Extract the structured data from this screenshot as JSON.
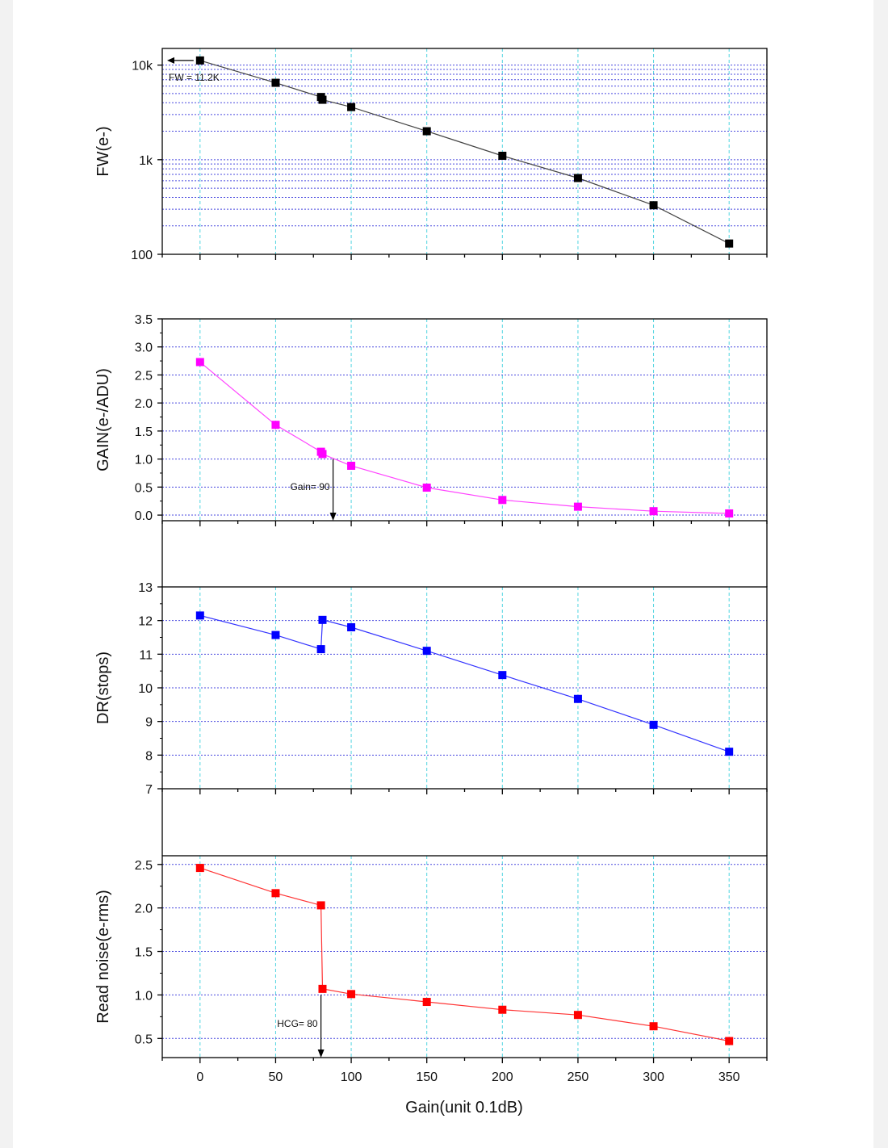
{
  "x_axis": {
    "label": "Gain(unit 0.1dB)",
    "ticks": [
      0,
      50,
      100,
      150,
      200,
      250,
      300,
      350
    ],
    "range": [
      -25,
      375
    ]
  },
  "chart_data": [
    {
      "type": "line",
      "ylabel": "FW(e-)",
      "y_scale": "log",
      "ylim": [
        100,
        15000
      ],
      "y_ticks": [
        {
          "v": 100,
          "label": "100"
        },
        {
          "v": 1000,
          "label": "1k"
        },
        {
          "v": 10000,
          "label": "10k"
        }
      ],
      "grid": true,
      "x_grid_color": "#4fd4e0",
      "y_grid_color": "#4a4adf",
      "series": [
        {
          "color": "#000000",
          "line_color": "#444444",
          "x": [
            0,
            50,
            80,
            81,
            100,
            150,
            200,
            250,
            300,
            350
          ],
          "y": [
            11200,
            6500,
            4600,
            4300,
            3600,
            2000,
            1100,
            640,
            330,
            130
          ]
        }
      ],
      "annotation": {
        "text": "FW = 11.2K",
        "x": 0,
        "y": 11200,
        "arrow": "left"
      }
    },
    {
      "type": "line",
      "ylabel": "GAIN(e-/ADU)",
      "y_scale": "linear",
      "ylim": [
        -0.1,
        3.5
      ],
      "y_ticks": [
        {
          "v": 0.0,
          "label": "0.0"
        },
        {
          "v": 0.5,
          "label": "0.5"
        },
        {
          "v": 1.0,
          "label": "1.0"
        },
        {
          "v": 1.5,
          "label": "1.5"
        },
        {
          "v": 2.0,
          "label": "2.0"
        },
        {
          "v": 2.5,
          "label": "2.5"
        },
        {
          "v": 3.0,
          "label": "3.0"
        },
        {
          "v": 3.5,
          "label": "3.5"
        }
      ],
      "grid": true,
      "x_grid_color": "#4fd4e0",
      "y_grid_color": "#4a4adf",
      "series": [
        {
          "color": "#ff00ff",
          "line_color": "#ff44ff",
          "x": [
            0,
            50,
            80,
            81,
            100,
            150,
            200,
            250,
            300,
            350
          ],
          "y": [
            2.73,
            1.61,
            1.13,
            1.09,
            0.88,
            0.49,
            0.27,
            0.15,
            0.07,
            0.03
          ]
        }
      ],
      "annotation": {
        "text": "Gain= 90",
        "x": 88,
        "y": 1.0,
        "arrow": "down"
      }
    },
    {
      "type": "line",
      "ylabel": "DR(stops)",
      "y_scale": "linear",
      "ylim": [
        7,
        13
      ],
      "y_ticks": [
        {
          "v": 7,
          "label": "7"
        },
        {
          "v": 8,
          "label": "8"
        },
        {
          "v": 9,
          "label": "9"
        },
        {
          "v": 10,
          "label": "10"
        },
        {
          "v": 11,
          "label": "11"
        },
        {
          "v": 12,
          "label": "12"
        },
        {
          "v": 13,
          "label": "13"
        }
      ],
      "grid": true,
      "x_grid_color": "#4fd4e0",
      "y_grid_color": "#4a4adf",
      "series": [
        {
          "color": "#0000ff",
          "line_color": "#3333ff",
          "x": [
            0,
            50,
            80,
            81,
            100,
            150,
            200,
            250,
            300,
            350
          ],
          "y": [
            12.15,
            11.57,
            11.15,
            12.02,
            11.8,
            11.1,
            10.38,
            9.67,
            8.9,
            8.1
          ]
        }
      ]
    },
    {
      "type": "line",
      "ylabel": "Read noise(e-rms)",
      "y_scale": "linear",
      "ylim": [
        0.28,
        2.6
      ],
      "y_ticks": [
        {
          "v": 0.5,
          "label": "0.5"
        },
        {
          "v": 1.0,
          "label": "1.0"
        },
        {
          "v": 1.5,
          "label": "1.5"
        },
        {
          "v": 2.0,
          "label": "2.0"
        },
        {
          "v": 2.5,
          "label": "2.5"
        }
      ],
      "grid": true,
      "x_grid_color": "#4fd4e0",
      "y_grid_color": "#4a4adf",
      "series": [
        {
          "color": "#ff0000",
          "line_color": "#ff3333",
          "x": [
            0,
            50,
            80,
            81,
            100,
            150,
            200,
            250,
            300,
            350
          ],
          "y": [
            2.46,
            2.17,
            2.03,
            1.07,
            1.01,
            0.92,
            0.83,
            0.77,
            0.64,
            0.47
          ]
        }
      ],
      "annotation": {
        "text": "HCG= 80",
        "x": 80,
        "y": 1.0,
        "arrow": "down"
      }
    }
  ]
}
